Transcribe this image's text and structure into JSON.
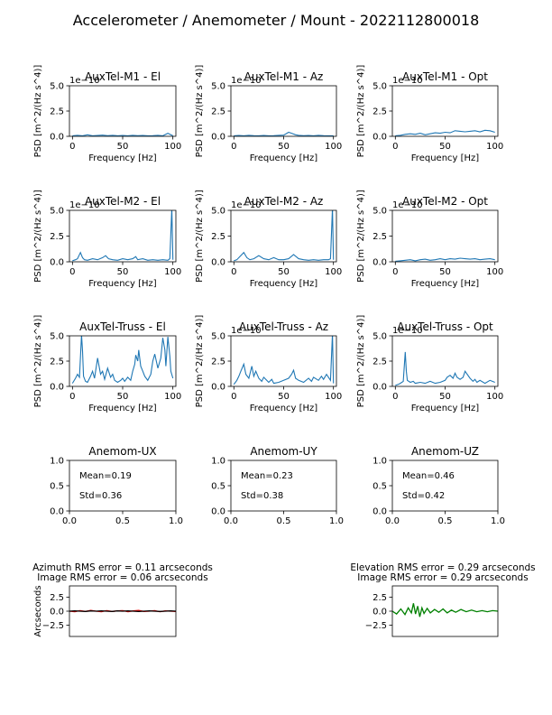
{
  "title": "Accelerometer / Anemometer / Mount - 2022112800018",
  "colors": {
    "psd_line": "#1f77b4",
    "azimuth_error": "#ff0000",
    "image_error": "#000000",
    "elevation_error": "#008000"
  },
  "chart_data": [
    {
      "id": "m1el",
      "type": "line",
      "title": "AuxTel-M1 - El",
      "xlabel": "Frequency [Hz]",
      "ylabel": "PSD [m^2/(Hz s^4)]",
      "offset_label": "1e−10",
      "xlim": [
        -3,
        103
      ],
      "ylim": [
        0,
        5
      ],
      "xticks": [
        0,
        50,
        100
      ],
      "yticks": [
        0.0,
        2.5,
        5.0
      ],
      "ytick_labels": [
        "0.0",
        "2.5",
        "5.0"
      ],
      "series": [
        {
          "x": [
            0,
            5,
            10,
            15,
            20,
            25,
            30,
            35,
            40,
            45,
            50,
            55,
            60,
            65,
            70,
            75,
            80,
            85,
            90,
            95,
            98,
            100
          ],
          "values": [
            0.05,
            0.1,
            0.05,
            0.15,
            0.05,
            0.08,
            0.12,
            0.06,
            0.1,
            0.05,
            0.08,
            0.05,
            0.1,
            0.06,
            0.08,
            0.05,
            0.06,
            0.1,
            0.05,
            0.3,
            0.15,
            0.05
          ]
        }
      ]
    },
    {
      "id": "m1az",
      "type": "line",
      "title": "AuxTel-M1 - Az",
      "xlabel": "Frequency [Hz]",
      "ylabel": "PSD [m^2/(Hz s^4)]",
      "offset_label": "1e−10",
      "xlim": [
        -3,
        103
      ],
      "ylim": [
        0,
        5
      ],
      "xticks": [
        0,
        50,
        100
      ],
      "yticks": [
        0.0,
        2.5,
        5.0
      ],
      "ytick_labels": [
        "0.0",
        "2.5",
        "5.0"
      ],
      "series": [
        {
          "x": [
            0,
            5,
            10,
            15,
            20,
            25,
            30,
            35,
            40,
            45,
            50,
            55,
            58,
            62,
            65,
            70,
            75,
            80,
            85,
            90,
            95,
            100
          ],
          "values": [
            0.05,
            0.08,
            0.05,
            0.1,
            0.06,
            0.05,
            0.08,
            0.05,
            0.06,
            0.1,
            0.12,
            0.4,
            0.3,
            0.15,
            0.1,
            0.06,
            0.08,
            0.05,
            0.1,
            0.06,
            0.05,
            0.05
          ]
        }
      ]
    },
    {
      "id": "m1opt",
      "type": "line",
      "title": "AuxTel-M1 - Opt",
      "xlabel": "Frequency [Hz]",
      "ylabel": "PSD [m^2/(Hz s^4)]",
      "offset_label": "1e−10",
      "xlim": [
        -3,
        103
      ],
      "ylim": [
        0,
        5
      ],
      "xticks": [
        0,
        50,
        100
      ],
      "yticks": [
        0.0,
        2.5,
        5.0
      ],
      "ytick_labels": [
        "0.0",
        "2.5",
        "5.0"
      ],
      "series": [
        {
          "x": [
            0,
            5,
            10,
            15,
            20,
            25,
            30,
            35,
            40,
            45,
            50,
            55,
            60,
            65,
            70,
            75,
            80,
            85,
            90,
            95,
            100
          ],
          "values": [
            0.05,
            0.1,
            0.2,
            0.25,
            0.2,
            0.3,
            0.15,
            0.25,
            0.35,
            0.3,
            0.4,
            0.35,
            0.55,
            0.5,
            0.45,
            0.5,
            0.55,
            0.45,
            0.6,
            0.55,
            0.4
          ]
        }
      ]
    },
    {
      "id": "m2el",
      "type": "line",
      "title": "AuxTel-M2 - El",
      "xlabel": "Frequency [Hz]",
      "ylabel": "PSD [m^2/(Hz s^4)]",
      "offset_label": "1e−10",
      "xlim": [
        -3,
        103
      ],
      "ylim": [
        0,
        5
      ],
      "xticks": [
        0,
        50,
        100
      ],
      "yticks": [
        0.0,
        2.5,
        5.0
      ],
      "ytick_labels": [
        "0.0",
        "2.5",
        "5.0"
      ],
      "series": [
        {
          "x": [
            0,
            3,
            5,
            8,
            10,
            12,
            15,
            20,
            25,
            30,
            33,
            36,
            40,
            45,
            50,
            55,
            60,
            63,
            65,
            70,
            75,
            80,
            85,
            90,
            95,
            97,
            99,
            100
          ],
          "values": [
            0.1,
            0.2,
            0.3,
            0.9,
            0.4,
            0.2,
            0.15,
            0.3,
            0.2,
            0.4,
            0.6,
            0.3,
            0.2,
            0.15,
            0.3,
            0.2,
            0.3,
            0.5,
            0.2,
            0.3,
            0.15,
            0.2,
            0.15,
            0.2,
            0.15,
            0.3,
            5.2,
            0.2
          ]
        }
      ]
    },
    {
      "id": "m2az",
      "type": "line",
      "title": "AuxTel-M2 - Az",
      "xlabel": "Frequency [Hz]",
      "ylabel": "PSD [m^2/(Hz s^4)]",
      "offset_label": "1e−10",
      "xlim": [
        -3,
        103
      ],
      "ylim": [
        0,
        5
      ],
      "xticks": [
        0,
        50,
        100
      ],
      "yticks": [
        0.0,
        2.5,
        5.0
      ],
      "ytick_labels": [
        "0.0",
        "2.5",
        "5.0"
      ],
      "series": [
        {
          "x": [
            0,
            3,
            6,
            10,
            13,
            16,
            20,
            25,
            30,
            35,
            40,
            45,
            50,
            55,
            60,
            65,
            70,
            75,
            80,
            85,
            90,
            95,
            97,
            99,
            100
          ],
          "values": [
            0.1,
            0.2,
            0.5,
            0.9,
            0.4,
            0.2,
            0.3,
            0.6,
            0.3,
            0.2,
            0.4,
            0.2,
            0.2,
            0.3,
            0.7,
            0.3,
            0.2,
            0.15,
            0.2,
            0.15,
            0.2,
            0.2,
            0.3,
            5.2,
            0.2
          ]
        }
      ]
    },
    {
      "id": "m2opt",
      "type": "line",
      "title": "AuxTel-M2 - Opt",
      "xlabel": "Frequency [Hz]",
      "ylabel": "PSD [m^2/(Hz s^4)]",
      "offset_label": "1e−10",
      "xlim": [
        -3,
        103
      ],
      "ylim": [
        0,
        5
      ],
      "xticks": [
        0,
        50,
        100
      ],
      "yticks": [
        0.0,
        2.5,
        5.0
      ],
      "ytick_labels": [
        "0.0",
        "2.5",
        "5.0"
      ],
      "series": [
        {
          "x": [
            0,
            5,
            10,
            15,
            20,
            25,
            30,
            35,
            40,
            45,
            50,
            55,
            60,
            65,
            70,
            75,
            80,
            85,
            90,
            95,
            100
          ],
          "values": [
            0.05,
            0.1,
            0.15,
            0.2,
            0.1,
            0.2,
            0.25,
            0.15,
            0.2,
            0.3,
            0.2,
            0.3,
            0.25,
            0.35,
            0.3,
            0.25,
            0.3,
            0.2,
            0.25,
            0.3,
            0.2
          ]
        }
      ]
    },
    {
      "id": "tel",
      "type": "line",
      "title": "AuxTel-Truss - El",
      "xlabel": "Frequency [Hz]",
      "ylabel": "PSD [m^2/(Hz s^4)]",
      "offset_label": "",
      "xlim": [
        -3,
        103
      ],
      "ylim": [
        0,
        5
      ],
      "xticks": [
        0,
        50,
        100
      ],
      "yticks": [
        0.0,
        2.5,
        5.0
      ],
      "ytick_labels": [
        "0.0",
        "2.5",
        "5.0"
      ],
      "series": [
        {
          "x": [
            0,
            3,
            5,
            7,
            9,
            10,
            11,
            13,
            15,
            18,
            20,
            22,
            25,
            28,
            30,
            32,
            35,
            38,
            40,
            42,
            45,
            48,
            50,
            52,
            55,
            58,
            60,
            62,
            63,
            65,
            66,
            68,
            70,
            72,
            75,
            78,
            80,
            82,
            85,
            88,
            90,
            92,
            93,
            95,
            97,
            98,
            100
          ],
          "values": [
            0.3,
            0.8,
            1.2,
            0.9,
            5.1,
            3.5,
            1.0,
            0.5,
            0.4,
            1.0,
            1.5,
            0.8,
            2.8,
            1.2,
            1.5,
            0.7,
            1.8,
            0.9,
            1.2,
            0.6,
            0.4,
            0.6,
            0.8,
            0.5,
            0.9,
            0.6,
            1.5,
            2.2,
            3.1,
            2.5,
            3.6,
            2.0,
            1.5,
            1.0,
            0.6,
            1.2,
            2.5,
            3.2,
            1.8,
            2.8,
            4.8,
            3.6,
            2.0,
            4.9,
            3.0,
            1.5,
            0.8
          ]
        }
      ]
    },
    {
      "id": "taz",
      "type": "line",
      "title": "AuxTel-Truss - Az",
      "xlabel": "Frequency [Hz]",
      "ylabel": "PSD [m^2/(Hz s^4)]",
      "offset_label": "1e−10",
      "xlim": [
        -3,
        103
      ],
      "ylim": [
        0,
        5
      ],
      "xticks": [
        0,
        50,
        100
      ],
      "yticks": [
        0.0,
        2.5,
        5.0
      ],
      "ytick_labels": [
        "0.0",
        "2.5",
        "5.0"
      ],
      "series": [
        {
          "x": [
            0,
            3,
            5,
            7,
            10,
            12,
            15,
            18,
            20,
            22,
            25,
            28,
            30,
            33,
            35,
            38,
            40,
            45,
            50,
            55,
            58,
            60,
            62,
            65,
            70,
            75,
            78,
            80,
            85,
            88,
            90,
            93,
            95,
            97,
            99,
            100
          ],
          "values": [
            0.2,
            0.6,
            1.0,
            1.5,
            2.2,
            1.2,
            0.8,
            2.0,
            1.0,
            1.5,
            0.8,
            0.5,
            0.9,
            0.6,
            0.4,
            0.7,
            0.3,
            0.4,
            0.6,
            0.8,
            1.2,
            1.6,
            0.8,
            0.6,
            0.4,
            0.8,
            0.5,
            0.9,
            0.6,
            1.0,
            0.7,
            1.2,
            0.9,
            0.6,
            5.2,
            0.3
          ]
        }
      ]
    },
    {
      "id": "topt",
      "type": "line",
      "title": "AuxTel-Truss - Opt",
      "xlabel": "Frequency [Hz]",
      "ylabel": "PSD [m^2/(Hz s^4)]",
      "offset_label": "1e−10",
      "xlim": [
        -3,
        103
      ],
      "ylim": [
        0,
        5
      ],
      "xticks": [
        0,
        50,
        100
      ],
      "yticks": [
        0.0,
        2.5,
        5.0
      ],
      "ytick_labels": [
        "0.0",
        "2.5",
        "5.0"
      ],
      "series": [
        {
          "x": [
            0,
            3,
            5,
            8,
            10,
            11,
            12,
            15,
            18,
            20,
            25,
            30,
            35,
            40,
            45,
            50,
            52,
            55,
            58,
            60,
            62,
            65,
            68,
            70,
            75,
            78,
            80,
            82,
            85,
            90,
            95,
            100
          ],
          "values": [
            0.1,
            0.2,
            0.3,
            0.5,
            3.4,
            1.5,
            0.6,
            0.4,
            0.5,
            0.3,
            0.4,
            0.3,
            0.5,
            0.3,
            0.4,
            0.6,
            0.9,
            1.1,
            0.8,
            1.3,
            0.9,
            0.7,
            0.9,
            1.5,
            0.8,
            0.5,
            0.7,
            0.4,
            0.6,
            0.3,
            0.6,
            0.4
          ]
        }
      ]
    },
    {
      "id": "ux",
      "type": "line",
      "title": "Anemom-UX",
      "xlim": [
        0,
        1
      ],
      "ylim": [
        0,
        1
      ],
      "xticks": [
        0.0,
        0.5,
        1.0
      ],
      "xtick_labels": [
        "0.0",
        "0.5",
        "1.0"
      ],
      "yticks": [
        0.0,
        0.5,
        1.0
      ],
      "ytick_labels": [
        "0.0",
        "0.5",
        "1.0"
      ],
      "annotations": [
        "Mean=0.19",
        "Std=0.36"
      ]
    },
    {
      "id": "uy",
      "type": "line",
      "title": "Anemom-UY",
      "xlim": [
        0,
        1
      ],
      "ylim": [
        0,
        1
      ],
      "xticks": [
        0.0,
        0.5,
        1.0
      ],
      "xtick_labels": [
        "0.0",
        "0.5",
        "1.0"
      ],
      "yticks": [
        0.0,
        0.5,
        1.0
      ],
      "ytick_labels": [
        "0.0",
        "0.5",
        "1.0"
      ],
      "annotations": [
        "Mean=0.23",
        "Std=0.38"
      ]
    },
    {
      "id": "uz",
      "type": "line",
      "title": "Anemom-UZ",
      "xlim": [
        0,
        1
      ],
      "ylim": [
        0,
        1
      ],
      "xticks": [
        0.0,
        0.5,
        1.0
      ],
      "xtick_labels": [
        "0.0",
        "0.5",
        "1.0"
      ],
      "yticks": [
        0.0,
        0.5,
        1.0
      ],
      "ytick_labels": [
        "0.0",
        "0.5",
        "1.0"
      ],
      "annotations": [
        "Mean=0.46",
        "Std=0.42"
      ]
    },
    {
      "id": "azerr",
      "type": "line",
      "title": "Azimuth RMS error = 0.11 arcseconds",
      "subtitle": "Image RMS error = 0.06 arcseconds",
      "ylabel": "Arcseconds",
      "xlim": [
        0,
        100
      ],
      "ylim": [
        -4.5,
        4.5
      ],
      "yticks": [
        2.5,
        0.0,
        -2.5
      ],
      "ytick_labels": [
        "2.5",
        "0.0",
        "−2.5"
      ],
      "series": [
        {
          "color_key": "azimuth_error",
          "x": [
            0,
            5,
            10,
            15,
            20,
            25,
            30,
            35,
            40,
            45,
            50,
            55,
            60,
            65,
            70,
            75,
            80,
            85,
            90,
            95,
            100
          ],
          "values": [
            0.0,
            -0.1,
            0.1,
            -0.05,
            0.15,
            0.0,
            -0.1,
            0.1,
            -0.05,
            0.05,
            0.1,
            -0.1,
            0.05,
            0.15,
            -0.05,
            0.0,
            0.1,
            -0.1,
            0.05,
            0.0,
            -0.05
          ]
        },
        {
          "color_key": "image_error",
          "x": [
            0,
            5,
            10,
            15,
            20,
            25,
            30,
            35,
            40,
            45,
            50,
            55,
            60,
            65,
            70,
            75,
            80,
            85,
            90,
            95,
            100
          ],
          "values": [
            0.0,
            0.05,
            0.0,
            -0.05,
            0.05,
            0.0,
            0.05,
            0.0,
            -0.05,
            0.05,
            0.0,
            0.05,
            0.0,
            -0.05,
            0.0,
            0.05,
            0.0,
            -0.05,
            0.0,
            0.05,
            0.0
          ]
        }
      ]
    },
    {
      "id": "elerr",
      "type": "line",
      "title": "Elevation RMS error = 0.29 arcseconds",
      "subtitle": "Image RMS error = 0.29 arcseconds",
      "xlim": [
        0,
        100
      ],
      "ylim": [
        -4.5,
        4.5
      ],
      "yticks": [
        2.5,
        0.0,
        -2.5
      ],
      "ytick_labels": [
        "2.5",
        "0.0",
        "−2.5"
      ],
      "series": [
        {
          "color_key": "elevation_error",
          "x": [
            0,
            4,
            8,
            12,
            15,
            18,
            20,
            22,
            24,
            26,
            28,
            30,
            33,
            36,
            40,
            44,
            48,
            52,
            56,
            60,
            65,
            70,
            75,
            80,
            85,
            90,
            95,
            100
          ],
          "values": [
            0.0,
            -0.5,
            0.4,
            -0.6,
            0.6,
            -0.3,
            1.4,
            -0.5,
            0.9,
            -1.0,
            0.6,
            -0.4,
            0.5,
            -0.3,
            0.3,
            -0.2,
            0.4,
            -0.3,
            0.2,
            -0.2,
            0.3,
            -0.1,
            0.2,
            -0.1,
            0.1,
            -0.1,
            0.1,
            0.0
          ]
        }
      ]
    }
  ]
}
